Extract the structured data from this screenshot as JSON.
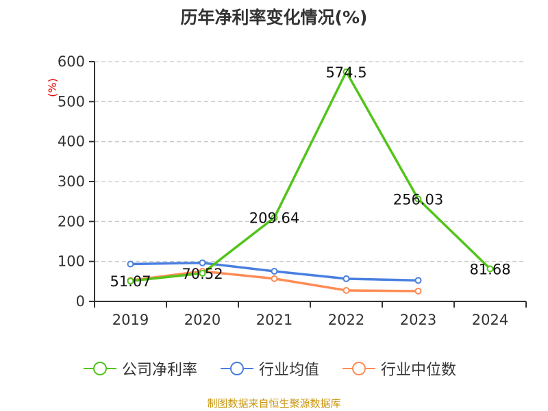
{
  "title": "历年净利率变化情况(%)",
  "source": "制图数据来自恒生聚源数据库",
  "chart_data": {
    "type": "line",
    "title": "历年净利率变化情况(%)",
    "ylabel": "(%)",
    "xlabel": "",
    "ylim": [
      0,
      600
    ],
    "yticks": [
      0,
      100,
      200,
      300,
      400,
      500,
      600
    ],
    "grid": true,
    "legend_position": "bottom",
    "categories": [
      "2019",
      "2020",
      "2021",
      "2022",
      "2023",
      "2024"
    ],
    "series": [
      {
        "name": "公司净利率",
        "color": "#52c41a",
        "values": [
          51.07,
          70.52,
          209.64,
          574.5,
          256.03,
          81.68
        ],
        "labels": [
          "51.07",
          "70.52",
          "209.64",
          "574.5",
          "256.03",
          "81.68"
        ]
      },
      {
        "name": "行业均值",
        "color": "#4a7fe0",
        "values": [
          93.5,
          96.5,
          75.4,
          56.7,
          52.6,
          null
        ]
      },
      {
        "name": "行业中位数",
        "color": "#ff8c55",
        "values": [
          52.6,
          75.4,
          57,
          27.5,
          25.8,
          null
        ]
      }
    ]
  }
}
